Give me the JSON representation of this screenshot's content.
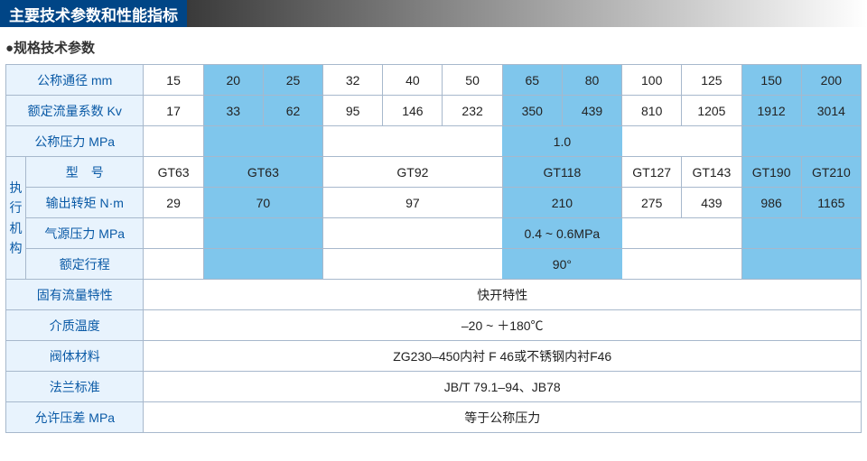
{
  "header_title": "主要技术参数和性能指标",
  "subheader": "●规格技术参数",
  "row_labels": {
    "diameter": "公称通径 mm",
    "kv": "额定流量系数 Kv",
    "pressure": "公称压力 MPa",
    "model": "型　号",
    "torque": "输出转矩 N·m",
    "air_pressure": "气源压力 MPa",
    "stroke": "额定行程",
    "flow_char": "固有流量特性",
    "temp": "介质温度",
    "body_material": "阀体材料",
    "flange_std": "法兰标准",
    "diff_pressure": "允许压差 MPa",
    "actuator_group": "执行机构"
  },
  "diameter_values": [
    "15",
    "20",
    "25",
    "32",
    "40",
    "50",
    "65",
    "80",
    "100",
    "125",
    "150",
    "200"
  ],
  "kv_values": [
    "17",
    "33",
    "62",
    "95",
    "146",
    "232",
    "350",
    "439",
    "810",
    "1205",
    "1912",
    "3014"
  ],
  "pressure_value": "1.0",
  "model_values": [
    "GT63",
    "GT63",
    "GT92",
    "GT118",
    "GT127",
    "GT143",
    "GT190",
    "GT210"
  ],
  "torque_values": [
    "29",
    "70",
    "97",
    "210",
    "275",
    "439",
    "986",
    "1165"
  ],
  "air_pressure_value": "0.4 ~ 0.6MPa",
  "stroke_value": "90°",
  "flow_char_value": "快开特性",
  "temp_value": "–20 ~ ＋180℃",
  "body_material_value": "ZG230–450内衬 F 46或不锈钢内衬F46",
  "flange_std_value": "JB/T 79.1–94、JB78",
  "diff_pressure_value": "等于公称压力",
  "colors": {
    "header_bg": "#004586",
    "header_text": "#ffffff",
    "label_bg": "#e8f3fd",
    "label_text": "#0a5aa6",
    "highlight_cell": "#7fc6ec",
    "border": "#a7b8cc",
    "gradient_start": "#3a3a3a",
    "gradient_end": "#ffffff"
  },
  "typography": {
    "header_fontsize": 17,
    "cell_fontsize": 14,
    "subheader_fontsize": 15
  },
  "highlight_columns": {
    "comment": "zero-based data-column indices that are tinted blue",
    "indices": [
      1,
      2,
      6,
      7,
      10,
      11
    ]
  }
}
